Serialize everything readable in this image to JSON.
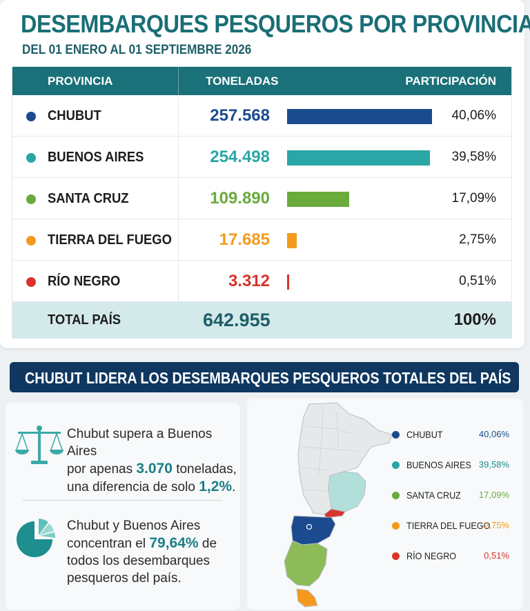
{
  "header": {
    "title": "DESEMBARQUES PESQUEROS POR PROVINCIA",
    "subtitle": "DEL 01 ENERO AL 01 SEPTIEMBRE 2026"
  },
  "table": {
    "columns": [
      "PROVINCIA",
      "TONELADAS",
      "PARTICIPACIÓN"
    ],
    "total_label": "TOTAL PAÍS",
    "total_value": "642.955",
    "total_pct": "100%"
  },
  "chart_data": {
    "type": "bar",
    "title": "DESEMBARQUES PESQUEROS POR PROVINCIA",
    "categories": [
      "CHUBUT",
      "BUENOS AIRES",
      "SANTA CRUZ",
      "TIERRA DEL FUEGO",
      "RÍO NEGRO"
    ],
    "values": [
      257568,
      254498,
      109890,
      17685,
      3312
    ],
    "values_label": [
      "257.568",
      "254.498",
      "109.890",
      "17.685",
      "3.312"
    ],
    "shares": [
      40.06,
      39.58,
      17.09,
      2.75,
      0.51
    ],
    "shares_label": [
      "40,06%",
      "39,58%",
      "17,09%",
      "2,75%",
      "0,51%"
    ],
    "colors": [
      "#1c4a8e",
      "#2aa6a6",
      "#6aab3c",
      "#f39a1d",
      "#d8342b"
    ]
  },
  "banner": {
    "text": "CHUBUT LIDERA LOS DESEMBARQUES PESQUEROS TOTALES DEL PAÍS"
  },
  "insights": {
    "first": {
      "a": "Chubut supera a Buenos Aires",
      "b": "por apenas",
      "diff": "3.070",
      "c": "toneladas,",
      "d": "una diferencia de solo",
      "pct": "1,2%",
      "end": "."
    },
    "second": {
      "a": "Chubut y Buenos Aires",
      "b": "concentran el",
      "pct": "79,64%",
      "c": "de",
      "d": "todos los desembarques",
      "e": "pesqueros del país."
    }
  },
  "icons": {
    "first": "balance-scale-icon",
    "second": "pie-chart-icon"
  }
}
